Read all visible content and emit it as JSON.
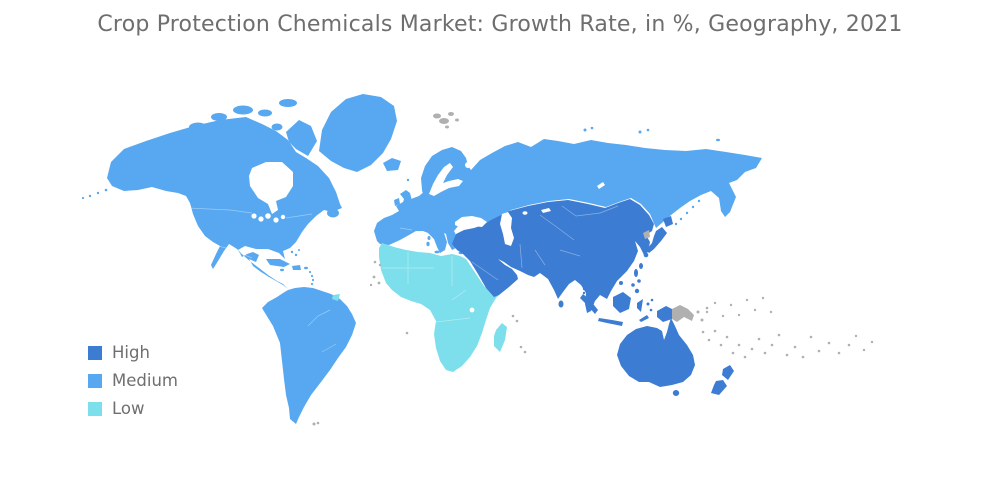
{
  "title": "Crop Protection Chemicals Market: Growth Rate, in %, Geography, 2021",
  "legend": {
    "items": [
      {
        "label": "High",
        "color": "#3C7CD2"
      },
      {
        "label": "Medium",
        "color": "#57A8F0"
      },
      {
        "label": "Low",
        "color": "#7DDFEB"
      }
    ]
  },
  "chart_data": {
    "type": "choropleth_map",
    "title": "Crop Protection Chemicals Market: Growth Rate, in %, Geography, 2021",
    "metric": "Growth Rate, in %",
    "year": "2021",
    "legend_position": "bottom-left",
    "levels": {
      "High": "#3C7CD2",
      "Medium": "#57A8F0",
      "Low": "#7DDFEB",
      "No data": "#B0B0B0"
    },
    "regions": [
      {
        "id": "north-america",
        "name": "North America (incl. Mexico & Central America)",
        "level": "Medium"
      },
      {
        "id": "greenland",
        "name": "Greenland",
        "level": "Medium"
      },
      {
        "id": "south-america",
        "name": "South America",
        "level": "Medium"
      },
      {
        "id": "europe-russia",
        "name": "Europe & Russia",
        "level": "Medium"
      },
      {
        "id": "africa",
        "name": "Africa",
        "level": "Low"
      },
      {
        "id": "french-guiana",
        "name": "French Guiana",
        "level": "Low"
      },
      {
        "id": "asia-pacific",
        "name": "Middle East & Asia (excl. Russia)",
        "level": "High"
      },
      {
        "id": "australia-nz",
        "name": "Australia & New Zealand",
        "level": "High"
      },
      {
        "id": "svalbard",
        "name": "Svalbard",
        "level": "No data"
      },
      {
        "id": "north-korea",
        "name": "North Korea",
        "level": "No data"
      },
      {
        "id": "papua-new-guinea",
        "name": "Papua New Guinea",
        "level": "No data"
      },
      {
        "id": "other-islands",
        "name": "Small islands (Pacific / Atlantic / Indian)",
        "level": "No data"
      }
    ]
  }
}
